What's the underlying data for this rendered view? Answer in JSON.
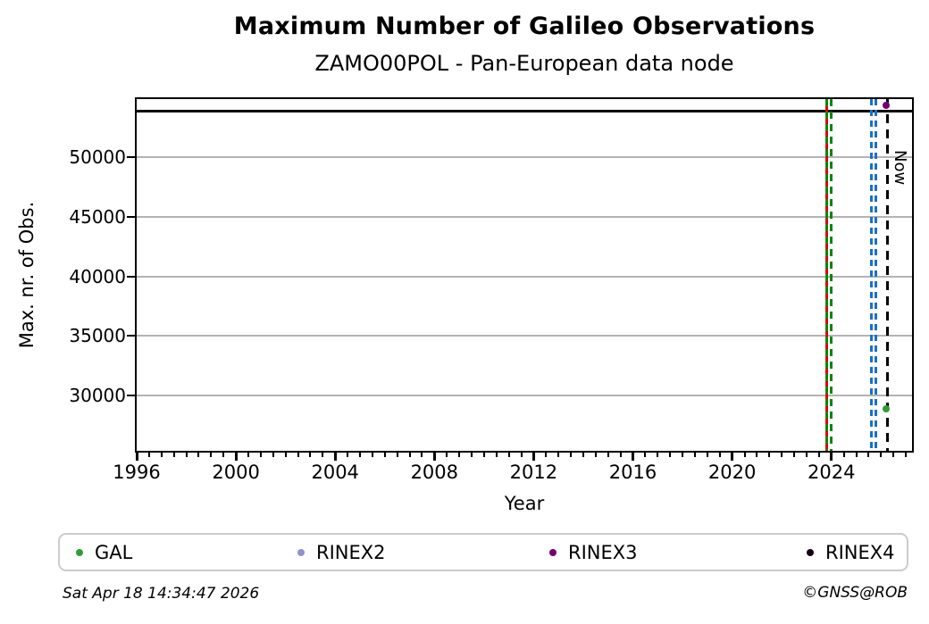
{
  "header": {
    "title": "Maximum Number of Galileo Observations",
    "subtitle": "ZAMO00POL - Pan-European data node"
  },
  "chart_data": {
    "type": "scatter",
    "title": "Maximum Number of Galileo Observations",
    "subtitle": "ZAMO00POL - Pan-European data node",
    "xlabel": "Year",
    "ylabel": "Max. nr. of Obs.",
    "xlim": [
      1996,
      2027.25
    ],
    "ylim": [
      25350,
      54900
    ],
    "x_major_ticks": [
      1996,
      2000,
      2004,
      2008,
      2012,
      2016,
      2020,
      2024
    ],
    "x_minor_step": 0.5,
    "y_ticks": [
      30000,
      35000,
      40000,
      45000,
      50000
    ],
    "grid": "horizontal-only",
    "grid_color": "#b3b3b3",
    "max_obs_line": {
      "y": 53860,
      "color": "#000000",
      "style": "solid"
    },
    "event_vlines": [
      {
        "x": 2023.8,
        "color": "#e00000",
        "style": "solid",
        "name": "red-event-line"
      },
      {
        "x": 2023.8,
        "color": "#0a870a",
        "style": "dashed",
        "name": "green-event-line-1"
      },
      {
        "x": 2024.0,
        "color": "#0a870a",
        "style": "dashed",
        "name": "green-event-line-2"
      },
      {
        "x": 2025.6,
        "color": "#1a70c8",
        "style": "dashed",
        "name": "blue-event-line-1"
      },
      {
        "x": 2025.8,
        "color": "#1a70c8",
        "style": "dashed",
        "name": "blue-event-line-2"
      },
      {
        "x": 2026.25,
        "color": "#000000",
        "style": "dashed",
        "name": "now-line",
        "label": "Now"
      }
    ],
    "points": [
      {
        "series": "GAL",
        "x": 2026.2,
        "y": 28900,
        "color": "#2f9e36"
      },
      {
        "series": "RINEX3",
        "x": 2026.2,
        "y": 54340,
        "color": "#730073"
      }
    ],
    "legend": {
      "position": "bottom",
      "items": [
        {
          "label": "GAL",
          "color": "#2f9e36"
        },
        {
          "label": "RINEX2",
          "color": "#9292cc"
        },
        {
          "label": "RINEX3",
          "color": "#730073"
        },
        {
          "label": "RINEX4",
          "color": "#150215"
        }
      ]
    }
  },
  "footer": {
    "timestamp": "Sat Apr 18 14:34:47 2026",
    "credit": "©GNSS@ROB"
  }
}
